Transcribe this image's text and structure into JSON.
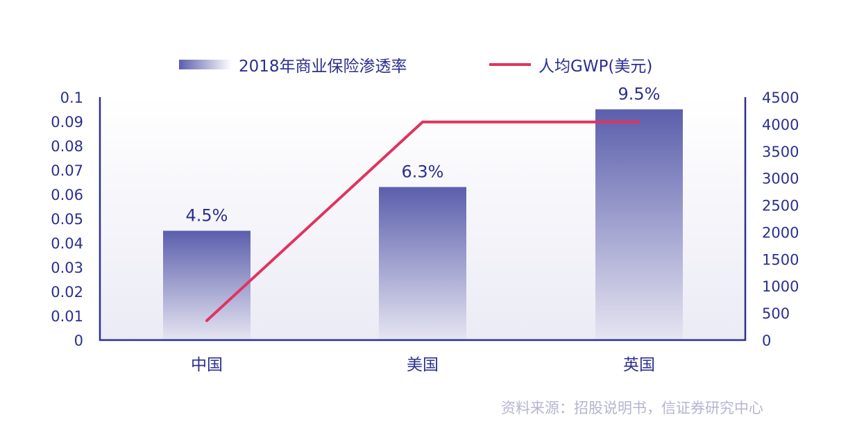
{
  "chart_data": {
    "type": "bar",
    "categories": [
      "中国",
      "美国",
      "英国"
    ],
    "series": [
      {
        "name": "2018年商业保险渗透率",
        "type": "bar",
        "axis": "left",
        "values": [
          0.045,
          0.063,
          0.095
        ],
        "labels": [
          "4.5%",
          "6.3%",
          "9.5%"
        ]
      },
      {
        "name": "人均GWP(美元)",
        "type": "line",
        "axis": "right",
        "values": [
          360,
          4040,
          4040
        ]
      }
    ],
    "y_left": {
      "range": [
        0,
        0.1
      ],
      "ticks": [
        "0",
        "0.01",
        "0.02",
        "0.03",
        "0.04",
        "0.05",
        "0.06",
        "0.07",
        "0.08",
        "0.09",
        "0.1"
      ]
    },
    "y_right": {
      "range": [
        0,
        4500
      ],
      "ticks": [
        "0",
        "500",
        "1000",
        "1500",
        "2000",
        "2500",
        "3000",
        "3500",
        "4000",
        "4500"
      ]
    },
    "legend_position": "top",
    "grid": false
  },
  "colors": {
    "bar_top": "#5b5fac",
    "bar_bottom": "#e6e5f2",
    "line": "#e0335f",
    "axis": "#2b2f8f",
    "text": "#2b2f8f",
    "source": "#b6b4d2"
  },
  "source": "资料来源：招股说明书，信证券研究中心"
}
